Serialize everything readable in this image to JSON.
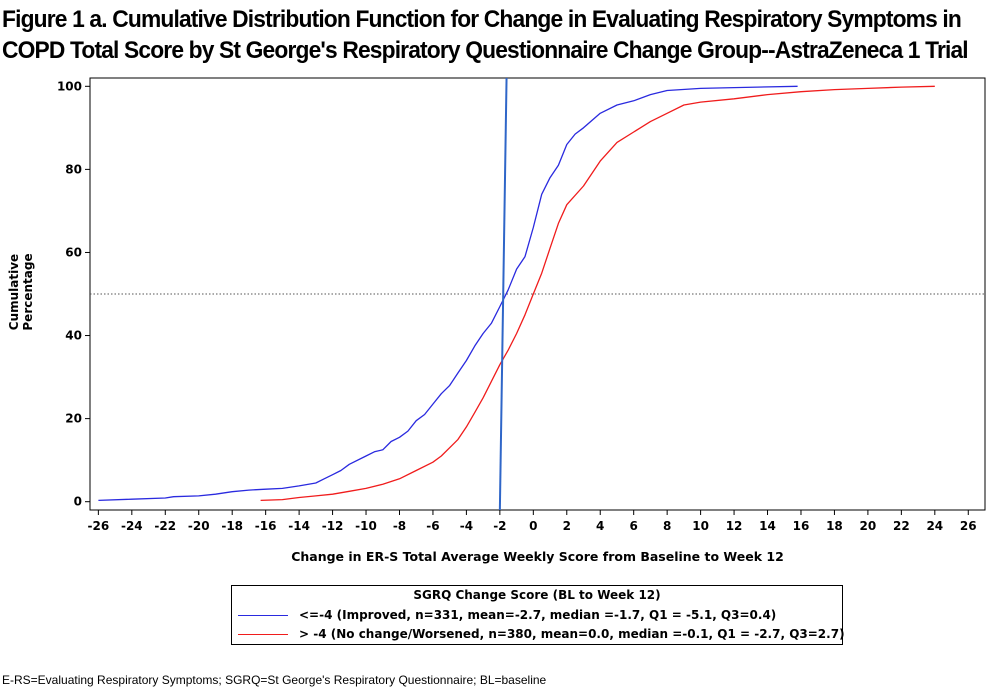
{
  "title_lines": [
    "Figure 1 a. Cumulative Distribution Function for Change in Evaluating Respiratory Symptoms in",
    "COPD Total Score by St George's Respiratory Questionnaire Change Group--AstraZeneca 1 Trial"
  ],
  "footnote": "E-RS=Evaluating Respiratory Symptoms; SGRQ=St George's Respiratory Questionnaire; BL=baseline",
  "chart_data": {
    "type": "line",
    "title": "Figure 1 a. Cumulative Distribution Function for Change in Evaluating Respiratory Symptoms in COPD Total Score by St George's Respiratory Questionnaire Change Group--AstraZeneca 1 Trial",
    "xlabel": "Change in ER-S Total Average Weekly Score from Baseline to Week 12",
    "ylabel": "Cumulative Percentage",
    "xlim": [
      -26.5,
      27
    ],
    "ylim": [
      -2,
      102
    ],
    "x_ticks": [
      -26,
      -24,
      -22,
      -20,
      -18,
      -16,
      -14,
      -12,
      -10,
      -8,
      -6,
      -4,
      -2,
      0,
      2,
      4,
      6,
      8,
      10,
      12,
      14,
      16,
      18,
      20,
      22,
      24,
      26
    ],
    "y_ticks": [
      0,
      20,
      40,
      60,
      80,
      100
    ],
    "reference_line_y": 50,
    "vertical_line": {
      "x_bottom": -2.0,
      "x_top": -1.6,
      "color": "#2f66c8"
    },
    "legend": {
      "title": "SGRQ Change Score (BL to Week 12)",
      "placement": "bottom-center"
    },
    "series": [
      {
        "name": "<=-4 (Improved, n=331, mean=-2.7, median =-1.7, Q1 = -5.1, Q3=0.4)",
        "color": "#2a2adf",
        "points": [
          [
            -26.0,
            0.3
          ],
          [
            -24.0,
            0.6
          ],
          [
            -22.0,
            0.9
          ],
          [
            -21.5,
            1.2
          ],
          [
            -20.0,
            1.4
          ],
          [
            -19.0,
            1.8
          ],
          [
            -18.0,
            2.4
          ],
          [
            -17.0,
            2.8
          ],
          [
            -16.0,
            3.0
          ],
          [
            -15.0,
            3.2
          ],
          [
            -14.0,
            3.8
          ],
          [
            -13.0,
            4.5
          ],
          [
            -12.5,
            5.5
          ],
          [
            -12.0,
            6.5
          ],
          [
            -11.5,
            7.5
          ],
          [
            -11.0,
            9.0
          ],
          [
            -10.0,
            11.0
          ],
          [
            -9.5,
            12.0
          ],
          [
            -9.0,
            12.5
          ],
          [
            -8.5,
            14.5
          ],
          [
            -8.0,
            15.5
          ],
          [
            -7.5,
            17.0
          ],
          [
            -7.0,
            19.5
          ],
          [
            -6.5,
            21.0
          ],
          [
            -6.0,
            23.5
          ],
          [
            -5.5,
            26.0
          ],
          [
            -5.0,
            28.0
          ],
          [
            -4.5,
            31.0
          ],
          [
            -4.0,
            34.0
          ],
          [
            -3.5,
            37.5
          ],
          [
            -3.0,
            40.5
          ],
          [
            -2.5,
            43.0
          ],
          [
            -2.0,
            47.0
          ],
          [
            -1.5,
            51.0
          ],
          [
            -1.0,
            56.0
          ],
          [
            -0.5,
            59.0
          ],
          [
            0.0,
            66.0
          ],
          [
            0.5,
            74.0
          ],
          [
            1.0,
            78.0
          ],
          [
            1.5,
            81.0
          ],
          [
            2.0,
            86.0
          ],
          [
            2.5,
            88.5
          ],
          [
            3.0,
            90.0
          ],
          [
            4.0,
            93.5
          ],
          [
            5.0,
            95.5
          ],
          [
            6.0,
            96.5
          ],
          [
            7.0,
            98.0
          ],
          [
            8.0,
            99.0
          ],
          [
            10.0,
            99.5
          ],
          [
            12.0,
            99.7
          ],
          [
            15.8,
            100.0
          ]
        ]
      },
      {
        "name": "> -4 (No change/Worsened, n=380, mean=0.0, median =-0.1, Q1 = -2.7, Q3=2.7)",
        "color": "#f01c1c",
        "points": [
          [
            -16.3,
            0.3
          ],
          [
            -15.0,
            0.5
          ],
          [
            -14.0,
            1.0
          ],
          [
            -13.0,
            1.4
          ],
          [
            -12.0,
            1.8
          ],
          [
            -11.0,
            2.5
          ],
          [
            -10.0,
            3.2
          ],
          [
            -9.0,
            4.2
          ],
          [
            -8.0,
            5.5
          ],
          [
            -7.0,
            7.5
          ],
          [
            -6.0,
            9.5
          ],
          [
            -5.5,
            11.0
          ],
          [
            -5.0,
            13.0
          ],
          [
            -4.5,
            15.0
          ],
          [
            -4.0,
            18.0
          ],
          [
            -3.5,
            21.5
          ],
          [
            -3.0,
            25.0
          ],
          [
            -2.5,
            29.0
          ],
          [
            -2.0,
            33.0
          ],
          [
            -1.5,
            36.5
          ],
          [
            -1.0,
            40.5
          ],
          [
            -0.5,
            45.0
          ],
          [
            0.0,
            50.0
          ],
          [
            0.5,
            55.0
          ],
          [
            1.0,
            61.0
          ],
          [
            1.5,
            67.0
          ],
          [
            2.0,
            71.5
          ],
          [
            3.0,
            76.0
          ],
          [
            4.0,
            82.0
          ],
          [
            5.0,
            86.5
          ],
          [
            6.0,
            89.0
          ],
          [
            7.0,
            91.5
          ],
          [
            8.0,
            93.5
          ],
          [
            9.0,
            95.5
          ],
          [
            10.0,
            96.2
          ],
          [
            12.0,
            97.0
          ],
          [
            14.0,
            98.0
          ],
          [
            16.0,
            98.7
          ],
          [
            18.0,
            99.2
          ],
          [
            20.0,
            99.5
          ],
          [
            22.0,
            99.8
          ],
          [
            24.0,
            100.0
          ]
        ]
      }
    ]
  }
}
